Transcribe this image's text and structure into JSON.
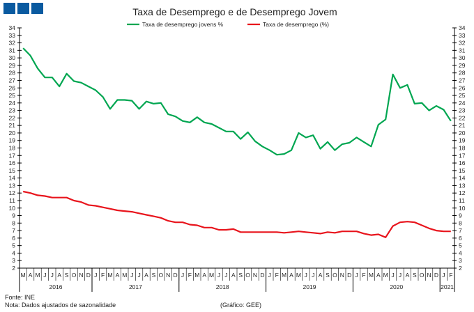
{
  "chart_data": {
    "type": "line",
    "title": "Taxa de Desemprego e de Desemprego Jovem",
    "ylim": [
      2,
      34
    ],
    "yticks": [
      2,
      3,
      4,
      5,
      6,
      7,
      8,
      9,
      10,
      11,
      12,
      13,
      14,
      15,
      16,
      17,
      18,
      19,
      20,
      21,
      22,
      23,
      24,
      25,
      26,
      27,
      28,
      29,
      30,
      31,
      32,
      33,
      34
    ],
    "month_labels": [
      "M",
      "A",
      "M",
      "J",
      "J",
      "A",
      "S",
      "O",
      "N",
      "D",
      "J",
      "F",
      "M",
      "A",
      "M",
      "J",
      "J",
      "A",
      "S",
      "O",
      "N",
      "D",
      "J",
      "F",
      "M",
      "A",
      "M",
      "J",
      "J",
      "A",
      "S",
      "O",
      "N",
      "D",
      "J",
      "F",
      "M",
      "A",
      "M",
      "J",
      "J",
      "A",
      "S",
      "O",
      "N",
      "D",
      "J",
      "F",
      "M",
      "A",
      "M",
      "J",
      "J",
      "A",
      "S",
      "O",
      "N",
      "D",
      "J",
      "F"
    ],
    "years": [
      {
        "label": "2016",
        "months": 10
      },
      {
        "label": "2017",
        "months": 12
      },
      {
        "label": "2018",
        "months": 12
      },
      {
        "label": "2019",
        "months": 12
      },
      {
        "label": "2020",
        "months": 12
      },
      {
        "label": "2021",
        "months": 2
      }
    ],
    "legend_position": "top-center",
    "series": [
      {
        "name": "Taxa de desemprego jovens %",
        "color": "#00a651",
        "values": [
          31.3,
          30.3,
          28.6,
          27.4,
          27.4,
          26.2,
          27.9,
          26.9,
          26.7,
          26.2,
          25.7,
          24.8,
          23.2,
          24.4,
          24.4,
          24.3,
          23.2,
          24.2,
          23.9,
          24.0,
          22.5,
          22.2,
          21.6,
          21.4,
          22.1,
          21.4,
          21.2,
          20.7,
          20.2,
          20.2,
          19.2,
          20.1,
          18.9,
          18.2,
          17.7,
          17.1,
          17.2,
          17.7,
          20.0,
          19.4,
          19.7,
          17.9,
          18.8,
          17.7,
          18.5,
          18.7,
          19.4,
          18.8,
          18.2,
          21.1,
          21.8,
          27.8,
          26.0,
          26.4,
          23.9,
          24.0,
          23.0,
          23.6,
          23.1,
          21.6
        ]
      },
      {
        "name": "Taxa de desemprego (%)",
        "color": "#e8141c",
        "values": [
          12.2,
          12.0,
          11.7,
          11.6,
          11.4,
          11.4,
          11.4,
          11.0,
          10.8,
          10.4,
          10.3,
          10.1,
          9.9,
          9.7,
          9.6,
          9.5,
          9.3,
          9.1,
          8.9,
          8.7,
          8.3,
          8.1,
          8.1,
          7.8,
          7.7,
          7.4,
          7.4,
          7.1,
          7.1,
          7.2,
          6.8,
          6.8,
          6.8,
          6.8,
          6.8,
          6.8,
          6.7,
          6.8,
          6.9,
          6.8,
          6.7,
          6.6,
          6.8,
          6.7,
          6.9,
          6.9,
          6.9,
          6.6,
          6.4,
          6.5,
          6.1,
          7.6,
          8.1,
          8.2,
          8.1,
          7.7,
          7.3,
          7.0,
          6.9,
          6.9
        ]
      }
    ]
  },
  "footer": {
    "source": "Fonte: INE",
    "note": "Nota: Dados ajustados de sazonalidade",
    "credit": "(Gráfico: GEE)"
  },
  "logo_color": "#0a5aa0"
}
